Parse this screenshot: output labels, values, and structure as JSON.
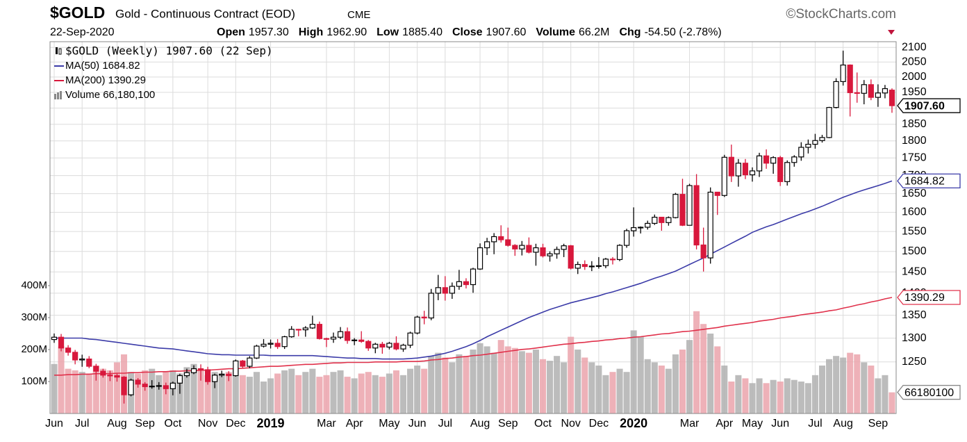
{
  "header": {
    "symbol": "$GOLD",
    "name": "Gold - Continuous Contract (EOD)",
    "exchange": "CME",
    "source": "©StockCharts.com",
    "date": "22-Sep-2020",
    "stats": [
      {
        "label": "Open",
        "value": "1957.30"
      },
      {
        "label": "High",
        "value": "1962.90"
      },
      {
        "label": "Low",
        "value": "1885.40"
      },
      {
        "label": "Close",
        "value": "1907.60"
      },
      {
        "label": "Volume",
        "value": "66.2M"
      },
      {
        "label": "Chg",
        "value": "-54.50 (-2.78%)"
      }
    ]
  },
  "chart_data": {
    "type": "candlestick",
    "legend": [
      "$GOLD (Weekly) 1907.60 (22 Sep)",
      "MA(50) 1684.82",
      "MA(200) 1390.29",
      "Volume 66,180,100"
    ],
    "categories": [
      "Jun",
      null,
      null,
      null,
      "Jul",
      null,
      null,
      null,
      null,
      "Aug",
      null,
      null,
      null,
      "Sep",
      null,
      null,
      null,
      "Oct",
      null,
      null,
      null,
      null,
      "Nov",
      null,
      null,
      null,
      "Dec",
      null,
      null,
      null,
      null,
      "2019",
      null,
      null,
      null,
      null,
      null,
      null,
      null,
      "Mar",
      null,
      null,
      null,
      "Apr",
      null,
      null,
      null,
      null,
      "May",
      null,
      null,
      null,
      "Jun",
      null,
      null,
      null,
      "Jul",
      null,
      null,
      null,
      null,
      "Aug",
      null,
      null,
      null,
      "Sep",
      null,
      null,
      null,
      null,
      "Oct",
      null,
      null,
      null,
      "Nov",
      null,
      null,
      null,
      "Dec",
      null,
      null,
      null,
      null,
      "2020",
      null,
      null,
      null,
      null,
      null,
      null,
      null,
      "Mar",
      null,
      null,
      null,
      null,
      "Apr",
      null,
      null,
      null,
      "May",
      null,
      null,
      null,
      "Jun",
      null,
      null,
      null,
      null,
      "Jul",
      null,
      null,
      null,
      "Aug",
      null,
      null,
      null,
      null,
      "Sep",
      null,
      null
    ],
    "open": [
      1297,
      1302,
      1279,
      1270,
      1254,
      1256,
      1241,
      1231,
      1223,
      1222,
      1219,
      1184,
      1213,
      1205,
      1200,
      1201,
      1202,
      1196,
      1207,
      1222,
      1228,
      1236,
      1234,
      1210,
      1223,
      1225,
      1222,
      1252,
      1241,
      1258,
      1283,
      1287,
      1289,
      1282,
      1303,
      1319,
      1318,
      1322,
      1330,
      1299,
      1298,
      1302,
      1314,
      1295,
      1296,
      1293,
      1279,
      1287,
      1281,
      1289,
      1277,
      1285,
      1311,
      1346,
      1344,
      1400,
      1413,
      1400,
      1416,
      1427,
      1420,
      1457,
      1509,
      1524,
      1537,
      1529,
      1515,
      1506,
      1515,
      1498,
      1509,
      1489,
      1494,
      1505,
      1514,
      1459,
      1468,
      1463,
      1464,
      1465,
      1481,
      1480,
      1515,
      1552,
      1560,
      1561,
      1571,
      1587,
      1573,
      1586,
      1648,
      1566,
      1672,
      1516,
      1484,
      1654,
      1645,
      1752,
      1699,
      1735,
      1702,
      1713,
      1756,
      1735,
      1751,
      1683,
      1737,
      1753,
      1781,
      1790,
      1801,
      1810,
      1902,
      1985,
      2040,
      1949,
      1947,
      1975,
      1934,
      1948,
      1957.3
    ],
    "high": [
      1310,
      1309,
      1285,
      1275,
      1265,
      1262,
      1246,
      1236,
      1232,
      1226,
      1221,
      1216,
      1217,
      1209,
      1213,
      1209,
      1208,
      1210,
      1226,
      1236,
      1243,
      1245,
      1240,
      1226,
      1232,
      1231,
      1255,
      1254,
      1262,
      1286,
      1298,
      1297,
      1298,
      1305,
      1326,
      1320,
      1326,
      1349,
      1336,
      1301,
      1312,
      1324,
      1323,
      1300,
      1315,
      1296,
      1290,
      1292,
      1292,
      1304,
      1288,
      1314,
      1349,
      1360,
      1410,
      1443,
      1440,
      1425,
      1455,
      1435,
      1460,
      1520,
      1534,
      1546,
      1566,
      1560,
      1518,
      1526,
      1535,
      1519,
      1519,
      1500,
      1512,
      1519,
      1516,
      1475,
      1478,
      1476,
      1486,
      1484,
      1486,
      1518,
      1557,
      1613,
      1563,
      1578,
      1594,
      1588,
      1589,
      1652,
      1691,
      1677,
      1704,
      1560,
      1667,
      1655,
      1759,
      1789,
      1747,
      1747,
      1723,
      1765,
      1775,
      1755,
      1756,
      1743,
      1758,
      1796,
      1804,
      1821,
      1818,
      1904,
      1996,
      2089,
      2042,
      2015,
      1990,
      1992,
      1976,
      1974,
      1962.9
    ],
    "low": [
      1290,
      1272,
      1263,
      1245,
      1240,
      1237,
      1212,
      1218,
      1211,
      1210,
      1167,
      1181,
      1198,
      1192,
      1196,
      1194,
      1185,
      1183,
      1186,
      1218,
      1225,
      1212,
      1204,
      1197,
      1219,
      1211,
      1220,
      1238,
      1237,
      1256,
      1280,
      1278,
      1277,
      1277,
      1301,
      1304,
      1303,
      1320,
      1297,
      1281,
      1290,
      1298,
      1288,
      1285,
      1290,
      1273,
      1268,
      1267,
      1276,
      1274,
      1271,
      1279,
      1308,
      1330,
      1339,
      1384,
      1383,
      1387,
      1408,
      1411,
      1401,
      1455,
      1491,
      1493,
      1522,
      1512,
      1489,
      1490,
      1495,
      1465,
      1485,
      1475,
      1482,
      1486,
      1456,
      1445,
      1455,
      1452,
      1458,
      1459,
      1468,
      1476,
      1509,
      1537,
      1545,
      1555,
      1567,
      1552,
      1565,
      1584,
      1564,
      1575,
      1505,
      1451,
      1470,
      1593,
      1641,
      1682,
      1669,
      1690,
      1683,
      1696,
      1719,
      1705,
      1671,
      1672,
      1725,
      1742,
      1763,
      1777,
      1795,
      1808,
      1899,
      1972,
      1874,
      1917,
      1912,
      1925,
      1904,
      1931,
      1885.4
    ],
    "close": [
      1302,
      1279,
      1270,
      1254,
      1256,
      1241,
      1231,
      1223,
      1222,
      1219,
      1184,
      1213,
      1205,
      1200,
      1201,
      1202,
      1196,
      1207,
      1222,
      1228,
      1236,
      1234,
      1210,
      1223,
      1225,
      1222,
      1252,
      1241,
      1258,
      1283,
      1287,
      1289,
      1282,
      1303,
      1319,
      1318,
      1322,
      1330,
      1299,
      1298,
      1302,
      1314,
      1295,
      1296,
      1293,
      1279,
      1287,
      1281,
      1289,
      1277,
      1285,
      1311,
      1346,
      1344,
      1400,
      1413,
      1400,
      1416,
      1427,
      1420,
      1457,
      1509,
      1524,
      1537,
      1529,
      1515,
      1506,
      1515,
      1498,
      1509,
      1489,
      1494,
      1505,
      1514,
      1459,
      1468,
      1463,
      1464,
      1465,
      1481,
      1480,
      1515,
      1552,
      1560,
      1561,
      1571,
      1587,
      1573,
      1586,
      1648,
      1566,
      1672,
      1516,
      1484,
      1654,
      1645,
      1752,
      1699,
      1735,
      1702,
      1713,
      1756,
      1735,
      1751,
      1683,
      1737,
      1753,
      1781,
      1790,
      1801,
      1810,
      1902,
      1985,
      2040,
      1949,
      1947,
      1975,
      1934,
      1948,
      1962,
      1907.6
    ],
    "close_label": "1907.60",
    "up_color": "#000000",
    "down_color": "#d8183c",
    "ylim": [
      1148,
      2120
    ],
    "log_scale": true,
    "grid": true,
    "yticks": [
      1250,
      1300,
      1350,
      1400,
      1450,
      1500,
      1550,
      1600,
      1650,
      1700,
      1750,
      1800,
      1850,
      1900,
      1950,
      2000,
      2050,
      2100
    ],
    "lines": [
      {
        "name": "MA(50)",
        "color": "#3b3ba8",
        "last_label": "1684.82",
        "values": [
          1300,
          1300,
          1300,
          1300,
          1300,
          1298,
          1297,
          1295,
          1293,
          1291,
          1289,
          1287,
          1285,
          1283,
          1281,
          1279,
          1278,
          1277,
          1275,
          1273,
          1271,
          1269,
          1267,
          1266,
          1265,
          1265,
          1264,
          1264,
          1264,
          1264,
          1264,
          1263,
          1263,
          1263,
          1263,
          1263,
          1263,
          1263,
          1262,
          1261,
          1260,
          1259,
          1258,
          1258,
          1257,
          1257,
          1257,
          1256,
          1256,
          1256,
          1256,
          1257,
          1258,
          1260,
          1262,
          1265,
          1268,
          1272,
          1277,
          1282,
          1288,
          1295,
          1303,
          1310,
          1317,
          1324,
          1331,
          1338,
          1345,
          1351,
          1357,
          1363,
          1368,
          1373,
          1378,
          1382,
          1386,
          1390,
          1394,
          1399,
          1403,
          1408,
          1413,
          1418,
          1423,
          1429,
          1435,
          1440,
          1446,
          1452,
          1460,
          1468,
          1476,
          1484,
          1493,
          1502,
          1511,
          1520,
          1529,
          1538,
          1548,
          1555,
          1562,
          1568,
          1575,
          1582,
          1589,
          1596,
          1602,
          1609,
          1616,
          1624,
          1632,
          1640,
          1647,
          1654,
          1660,
          1666,
          1672,
          1678,
          1684.82
        ]
      },
      {
        "name": "MA(200)",
        "color": "#e0304a",
        "last_label": "1390.29",
        "values": [
          1223,
          1223,
          1224,
          1224,
          1225,
          1225,
          1226,
          1226,
          1226,
          1227,
          1227,
          1228,
          1228,
          1229,
          1229,
          1230,
          1230,
          1231,
          1231,
          1232,
          1232,
          1233,
          1233,
          1234,
          1235,
          1236,
          1236,
          1237,
          1238,
          1239,
          1240,
          1241,
          1241,
          1242,
          1243,
          1244,
          1245,
          1245,
          1246,
          1247,
          1248,
          1248,
          1249,
          1249,
          1249,
          1249,
          1250,
          1250,
          1250,
          1250,
          1251,
          1251,
          1251,
          1252,
          1254,
          1255,
          1257,
          1258,
          1260,
          1261,
          1263,
          1264,
          1266,
          1268,
          1270,
          1272,
          1274,
          1276,
          1277,
          1279,
          1281,
          1283,
          1285,
          1287,
          1288,
          1290,
          1291,
          1293,
          1294,
          1296,
          1297,
          1299,
          1300,
          1302,
          1303,
          1305,
          1307,
          1309,
          1310,
          1312,
          1314,
          1315,
          1317,
          1319,
          1321,
          1323,
          1326,
          1328,
          1330,
          1332,
          1334,
          1337,
          1339,
          1341,
          1344,
          1346,
          1348,
          1351,
          1353,
          1355,
          1357,
          1360,
          1362,
          1366,
          1369,
          1373,
          1376,
          1380,
          1383,
          1387,
          1390.29
        ]
      }
    ],
    "volume": {
      "up_color": "#b0b0b0",
      "down_color": "#eba3ab",
      "last_label": "66180100",
      "ylim": [
        0,
        1163000000
      ],
      "yticks": [
        {
          "value": 100000000,
          "label": "100M"
        },
        {
          "value": 200000000,
          "label": "200M"
        },
        {
          "value": 300000000,
          "label": "300M"
        },
        {
          "value": 400000000,
          "label": "400M"
        }
      ],
      "values": [
        155000000,
        210000000,
        140000000,
        135000000,
        130000000,
        125000000,
        150000000,
        140000000,
        135000000,
        160000000,
        185000000,
        130000000,
        125000000,
        135000000,
        140000000,
        120000000,
        130000000,
        135000000,
        125000000,
        145000000,
        155000000,
        140000000,
        120000000,
        130000000,
        125000000,
        130000000,
        140000000,
        120000000,
        115000000,
        130000000,
        100000000,
        110000000,
        125000000,
        135000000,
        140000000,
        120000000,
        130000000,
        140000000,
        115000000,
        120000000,
        130000000,
        135000000,
        115000000,
        110000000,
        125000000,
        130000000,
        120000000,
        115000000,
        125000000,
        135000000,
        120000000,
        140000000,
        150000000,
        140000000,
        180000000,
        190000000,
        175000000,
        160000000,
        185000000,
        180000000,
        200000000,
        220000000,
        210000000,
        190000000,
        230000000,
        210000000,
        205000000,
        195000000,
        190000000,
        200000000,
        170000000,
        165000000,
        180000000,
        160000000,
        240000000,
        200000000,
        175000000,
        160000000,
        150000000,
        120000000,
        130000000,
        140000000,
        130000000,
        260000000,
        240000000,
        170000000,
        160000000,
        150000000,
        140000000,
        185000000,
        200000000,
        230000000,
        320000000,
        280000000,
        250000000,
        210000000,
        150000000,
        100000000,
        120000000,
        110000000,
        95000000,
        110000000,
        95000000,
        105000000,
        100000000,
        110000000,
        105000000,
        100000000,
        95000000,
        120000000,
        150000000,
        170000000,
        180000000,
        175000000,
        190000000,
        185000000,
        160000000,
        150000000,
        110000000,
        120000000,
        66180100
      ]
    }
  }
}
